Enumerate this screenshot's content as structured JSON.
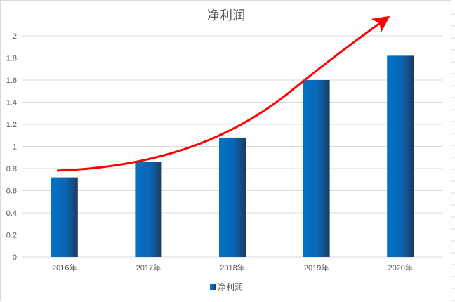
{
  "chart_data": {
    "type": "bar",
    "title": "净利润",
    "categories": [
      "2016年",
      "2017年",
      "2018年",
      "2019年",
      "2020年"
    ],
    "series": [
      {
        "name": "净利润",
        "values": [
          0.72,
          0.86,
          1.08,
          1.6,
          1.82
        ]
      }
    ],
    "ylim": [
      0,
      2
    ],
    "yticks": [
      "0",
      "0.2",
      "0.4",
      "0.6",
      "0.8",
      "1",
      "1.2",
      "1.4",
      "1.6",
      "1.8",
      "2"
    ],
    "grid": true,
    "legend": "bottom",
    "annotation": "red upward trend arrow",
    "colors": {
      "bar_light": "#0070c0",
      "bar_dark": "#1f3c64",
      "arrow": "#ff0000",
      "grid": "#d9d9d9"
    }
  }
}
